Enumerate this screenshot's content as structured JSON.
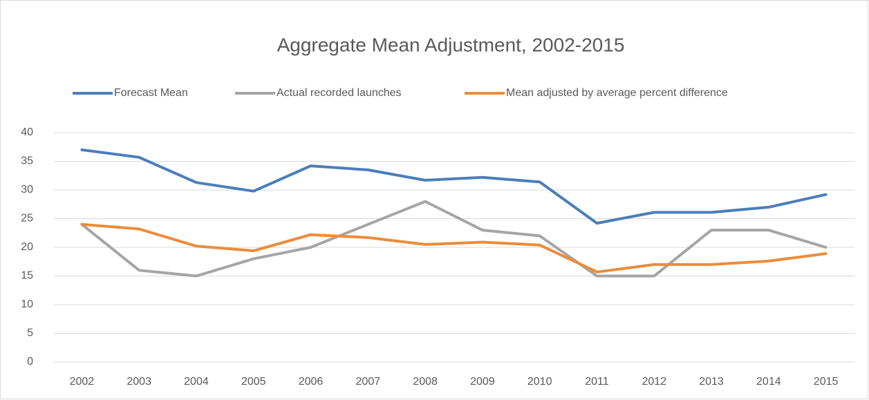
{
  "chart_data": {
    "type": "line",
    "title": "Aggregate Mean Adjustment, 2002-2015",
    "categories": [
      "2002",
      "2003",
      "2004",
      "2005",
      "2006",
      "2007",
      "2008",
      "2009",
      "2010",
      "2011",
      "2012",
      "2013",
      "2014",
      "2015"
    ],
    "series": [
      {
        "name": "Forecast Mean",
        "color": "#4a7ebb",
        "values": [
          37,
          35.7,
          31.3,
          29.8,
          34.2,
          33.5,
          31.7,
          32.2,
          31.4,
          24.2,
          26.1,
          26.1,
          27,
          29.2
        ]
      },
      {
        "name": "Actual recorded launches",
        "color": "#a5a5a5",
        "values": [
          24,
          16,
          15,
          18,
          20,
          24,
          28,
          23,
          22,
          15,
          15,
          23,
          23,
          20
        ]
      },
      {
        "name": "Mean adjusted by average percent difference",
        "color": "#ed8b3b",
        "values": [
          24,
          23.2,
          20.2,
          19.4,
          22.2,
          21.7,
          20.5,
          20.9,
          20.4,
          15.7,
          17,
          17,
          17.6,
          18.9
        ]
      }
    ],
    "ylim": [
      0,
      40
    ],
    "yticks": [
      0,
      5,
      10,
      15,
      20,
      25,
      30,
      35,
      40
    ],
    "grid": true,
    "legend": "top"
  }
}
